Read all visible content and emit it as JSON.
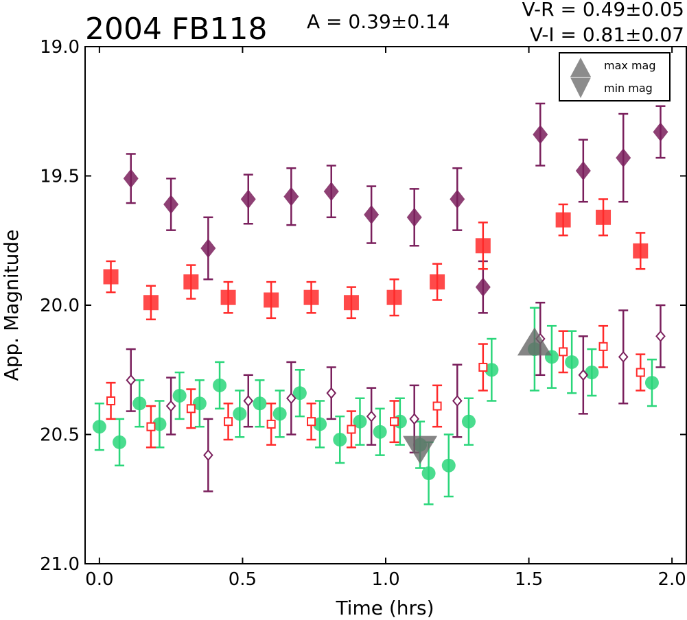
{
  "header": {
    "object_name": "2004 FB118",
    "amplitude": "A  = 0.39±0.14",
    "color_vr": "V-R = 0.49±0.05",
    "color_vi": "V-I  = 0.81±0.07"
  },
  "legend": {
    "max_label": "max mag",
    "min_label": "min mag",
    "placement": "top-right"
  },
  "colors": {
    "purple": "#7a1f5c",
    "red": "#ff2a2a",
    "green": "#2ad67a",
    "marker_gray": "#666666"
  },
  "chart_data": {
    "type": "scatter",
    "xlabel": "Time (hrs)",
    "ylabel": "App. Magnitude",
    "xlim": [
      -0.05,
      2.05
    ],
    "ylim": [
      21.0,
      19.0
    ],
    "y_inverted": true,
    "xticks": [
      "0.0",
      "0.5",
      "1.0",
      "1.5",
      "2.0"
    ],
    "xtick_values": [
      0.0,
      0.5,
      1.0,
      1.5,
      2.0
    ],
    "yticks": [
      "19.0",
      "19.5",
      "20.0",
      "20.5",
      "21.0"
    ],
    "ytick_values": [
      19.0,
      19.5,
      20.0,
      20.5,
      21.0
    ],
    "grid": false,
    "series": [
      {
        "marker": "diamond-filled",
        "color": "#7a1f5c",
        "x": [
          0.11,
          0.25,
          0.38,
          0.52,
          0.67,
          0.81,
          0.95,
          1.1,
          1.25,
          1.34,
          1.54,
          1.69,
          1.83,
          1.96
        ],
        "y": [
          19.51,
          19.61,
          19.78,
          19.59,
          19.58,
          19.56,
          19.65,
          19.66,
          19.59,
          19.93,
          19.34,
          19.48,
          19.43,
          19.33
        ],
        "err": [
          0.095,
          0.1,
          0.12,
          0.095,
          0.11,
          0.1,
          0.11,
          0.11,
          0.12,
          0.1,
          0.12,
          0.12,
          0.17,
          0.1
        ]
      },
      {
        "marker": "square-filled",
        "color": "#ff2a2a",
        "x": [
          0.04,
          0.18,
          0.32,
          0.45,
          0.6,
          0.74,
          0.88,
          1.03,
          1.18,
          1.34,
          1.62,
          1.76,
          1.89
        ],
        "y": [
          19.89,
          19.99,
          19.91,
          19.97,
          19.98,
          19.97,
          19.99,
          19.97,
          19.91,
          19.77,
          19.67,
          19.66,
          19.79
        ],
        "err": [
          0.06,
          0.065,
          0.065,
          0.06,
          0.07,
          0.06,
          0.06,
          0.07,
          0.07,
          0.09,
          0.06,
          0.07,
          0.07
        ]
      },
      {
        "marker": "circle-filled",
        "color": "#2ad67a",
        "x": [
          0.0,
          0.07,
          0.14,
          0.21,
          0.28,
          0.35,
          0.42,
          0.49,
          0.56,
          0.63,
          0.7,
          0.77,
          0.84,
          0.91,
          0.98,
          1.05,
          1.12,
          1.15,
          1.22,
          1.29,
          1.37,
          1.52,
          1.58,
          1.65,
          1.72,
          1.93
        ],
        "y": [
          20.47,
          20.53,
          20.38,
          20.46,
          20.35,
          20.38,
          20.31,
          20.42,
          20.38,
          20.42,
          20.34,
          20.46,
          20.52,
          20.45,
          20.49,
          20.45,
          20.54,
          20.65,
          20.62,
          20.45,
          20.25,
          20.17,
          20.2,
          20.22,
          20.26,
          20.3
        ],
        "err": [
          0.09,
          0.09,
          0.09,
          0.09,
          0.09,
          0.09,
          0.09,
          0.09,
          0.09,
          0.09,
          0.09,
          0.09,
          0.09,
          0.09,
          0.09,
          0.09,
          0.09,
          0.12,
          0.12,
          0.09,
          0.12,
          0.16,
          0.12,
          0.12,
          0.09,
          0.09
        ]
      },
      {
        "marker": "square-open",
        "color": "#ff2a2a",
        "x": [
          0.04,
          0.18,
          0.32,
          0.45,
          0.6,
          0.74,
          0.88,
          1.03,
          1.18,
          1.34,
          1.62,
          1.76,
          1.89
        ],
        "y": [
          20.37,
          20.47,
          20.4,
          20.45,
          20.46,
          20.45,
          20.48,
          20.45,
          20.39,
          20.24,
          20.18,
          20.16,
          20.26
        ],
        "err": [
          0.07,
          0.08,
          0.075,
          0.07,
          0.08,
          0.07,
          0.07,
          0.08,
          0.08,
          0.09,
          0.08,
          0.08,
          0.07
        ]
      },
      {
        "marker": "diamond-open",
        "color": "#7a1f5c",
        "x": [
          0.11,
          0.25,
          0.38,
          0.52,
          0.67,
          0.81,
          0.95,
          1.1,
          1.25,
          1.54,
          1.69,
          1.83,
          1.96
        ],
        "y": [
          20.29,
          20.39,
          20.58,
          20.37,
          20.36,
          20.34,
          20.43,
          20.44,
          20.37,
          20.13,
          20.27,
          20.2,
          20.12
        ],
        "err": [
          0.12,
          0.11,
          0.14,
          0.1,
          0.14,
          0.1,
          0.11,
          0.13,
          0.14,
          0.14,
          0.15,
          0.18,
          0.12
        ]
      }
    ],
    "extrema_markers": [
      {
        "label": "max mag",
        "marker": "triangle-up",
        "x": 1.52,
        "y": 20.16
      },
      {
        "label": "min mag",
        "marker": "triangle-down",
        "x": 1.12,
        "y": 20.54
      }
    ]
  }
}
